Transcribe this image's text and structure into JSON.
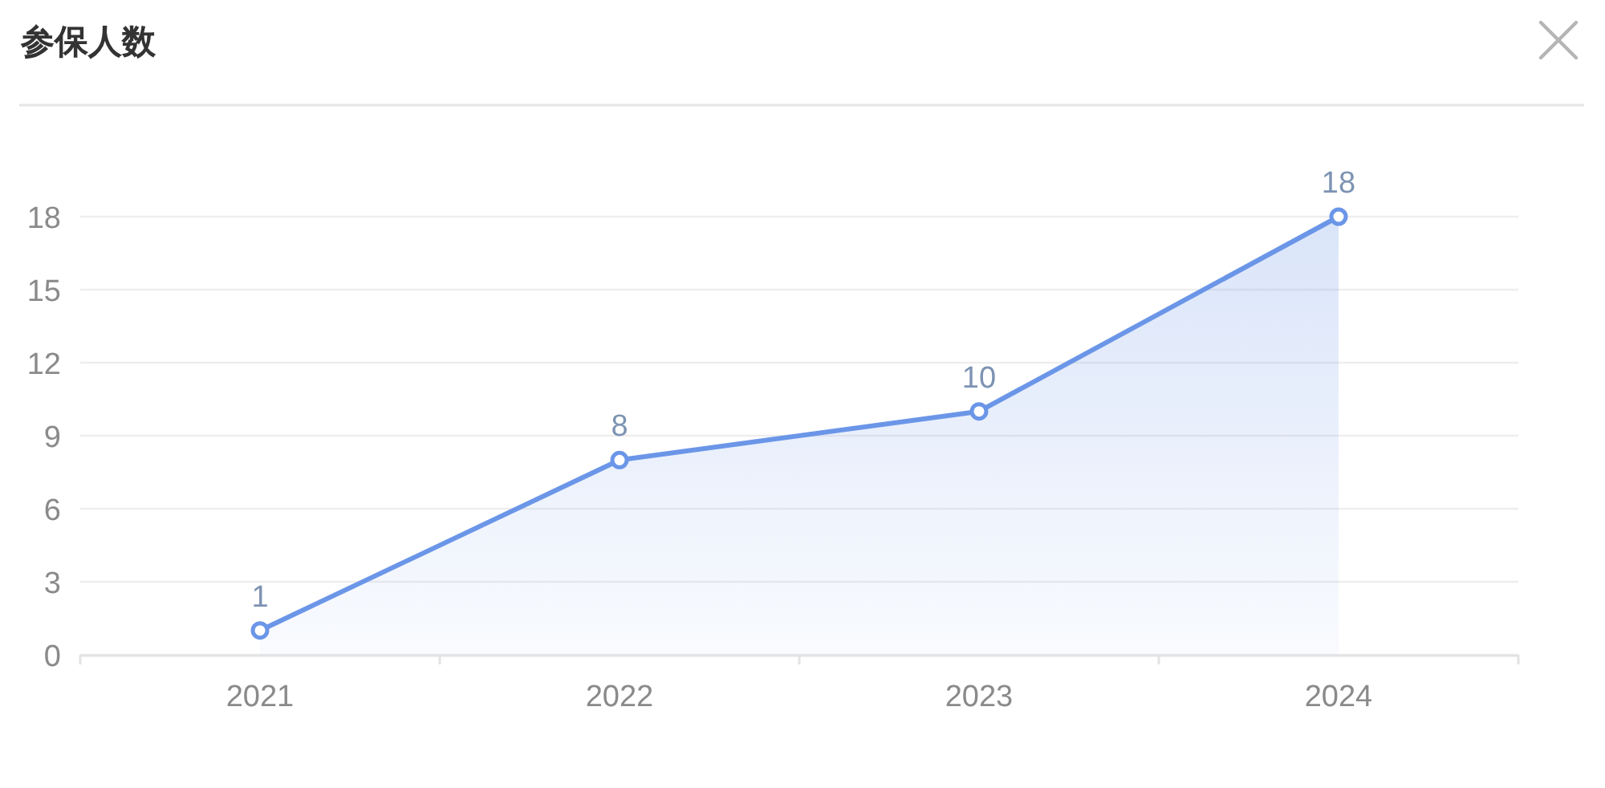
{
  "chart_data": {
    "type": "area",
    "title": "参保人数",
    "categories": [
      "2021",
      "2022",
      "2023",
      "2024"
    ],
    "series": [
      {
        "color": "#6b96e8",
        "values": [
          1,
          8,
          10,
          18
        ]
      }
    ],
    "ylim": [
      0,
      18
    ],
    "yticks": [
      0,
      3,
      6,
      9,
      12,
      15,
      18
    ],
    "grid": "y",
    "marker": "circle",
    "line_style": "solid",
    "data_labels": true
  }
}
